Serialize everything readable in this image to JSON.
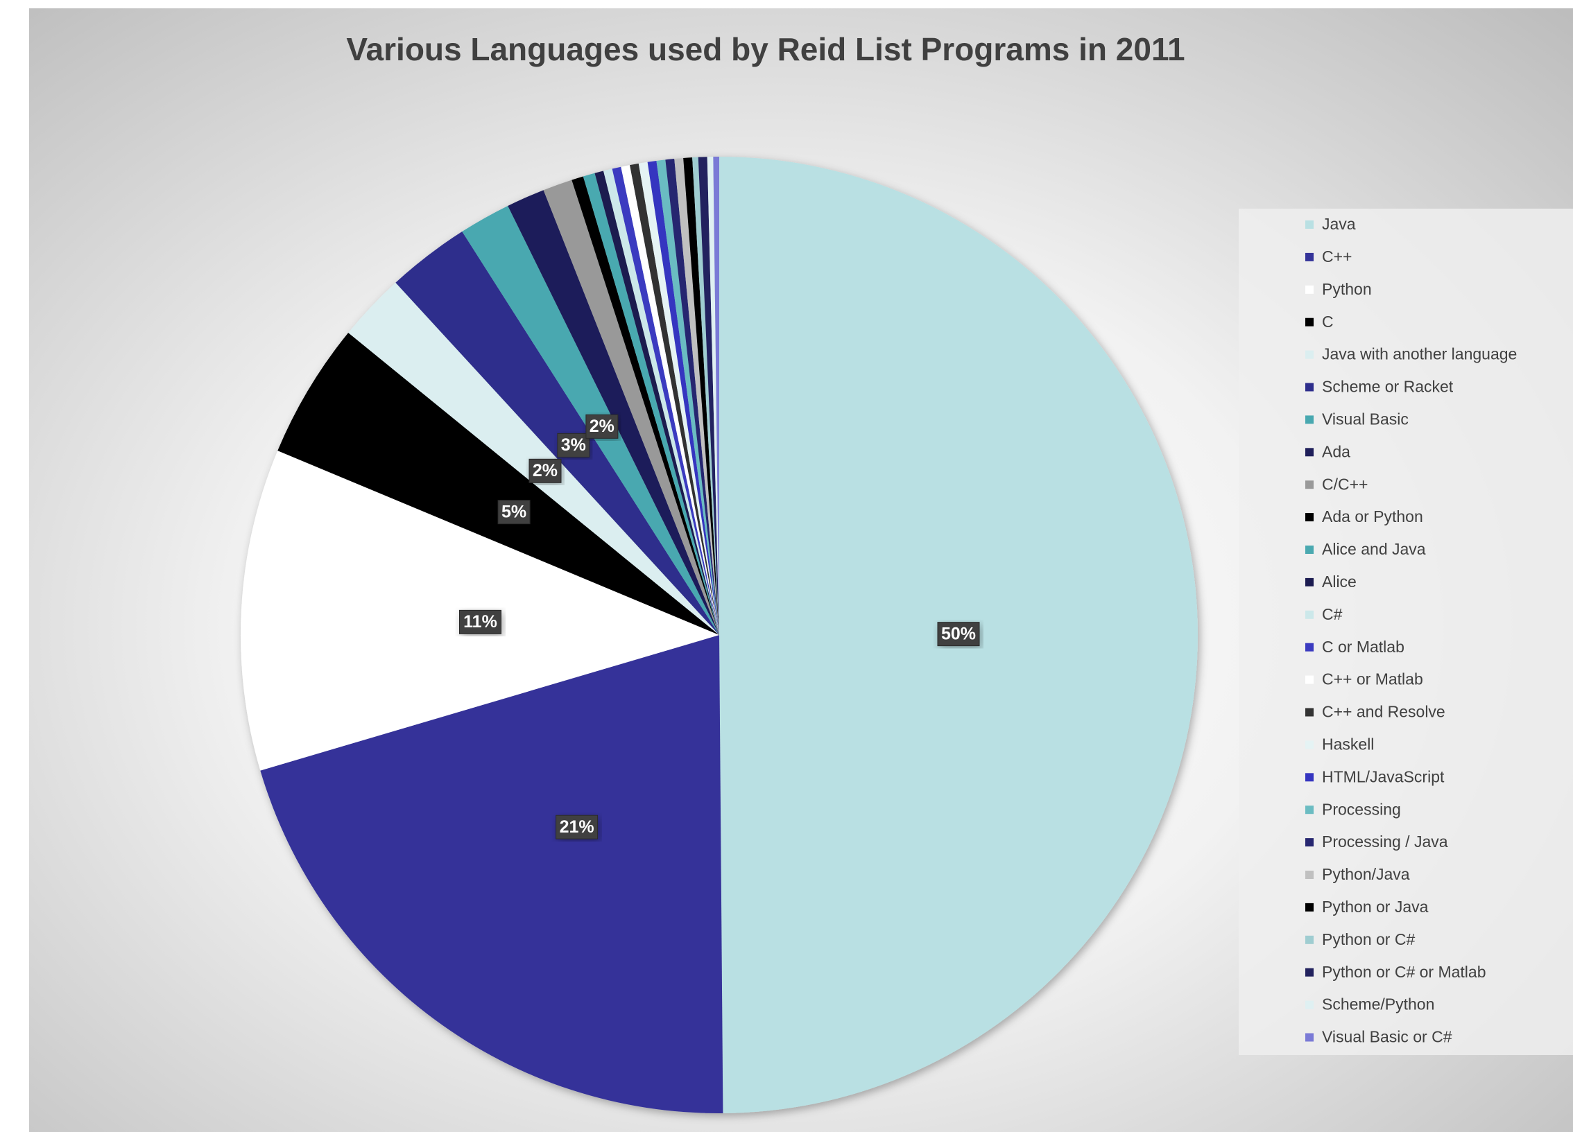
{
  "chart_data": {
    "type": "pie",
    "title": "Various Languages used by Reid List Programs in 2011",
    "categories": [
      "Java",
      "C++",
      "Python",
      "C",
      "Java with another language",
      "Scheme or Racket",
      "Visual Basic",
      "Ada",
      "C/C++",
      "Ada or Python",
      "Alice and Java",
      "Alice",
      "C#",
      "C or Matlab",
      "C++ or Matlab",
      "C++ and Resolve",
      "Haskell",
      "HTML/JavaScript",
      "Processing",
      "Processing / Java",
      "Python/Java",
      "Python or Java",
      "Python or C#",
      "Python or C# or Matlab",
      "Scheme/Python",
      "Visual Basic or C#"
    ],
    "values": [
      50,
      20.6,
      10.9,
      4.6,
      2.3,
      2.8,
      1.75,
      1.3,
      1.0,
      0.4,
      0.4,
      0.3,
      0.3,
      0.3,
      0.3,
      0.3,
      0.3,
      0.3,
      0.3,
      0.3,
      0.3,
      0.3,
      0.2,
      0.3,
      0.2,
      0.2
    ],
    "value_labels": [
      "50%",
      "21%",
      "11%",
      "5%",
      "2%",
      "3%",
      "2%",
      null,
      null,
      null,
      null,
      null,
      null,
      null,
      null,
      null,
      null,
      null,
      null,
      null,
      null,
      null,
      null,
      null,
      null,
      null
    ],
    "colors": [
      "#b9e0e3",
      "#343399",
      "#ffffff",
      "#000000",
      "#dbeef0",
      "#2e2e8c",
      "#48a8b0",
      "#1f1f5a",
      "#999999",
      "#000000",
      "#4aa9b0",
      "#1b1b50",
      "#cce8ea",
      "#3b3bc0",
      "#ffffff",
      "#333333",
      "#e5f3f4",
      "#3535c0",
      "#6bbcc2",
      "#262670",
      "#c0c0c0",
      "#000000",
      "#9fcdd1",
      "#22225e",
      "#dff0f2",
      "#7a7ad6"
    ],
    "legend": "right"
  }
}
